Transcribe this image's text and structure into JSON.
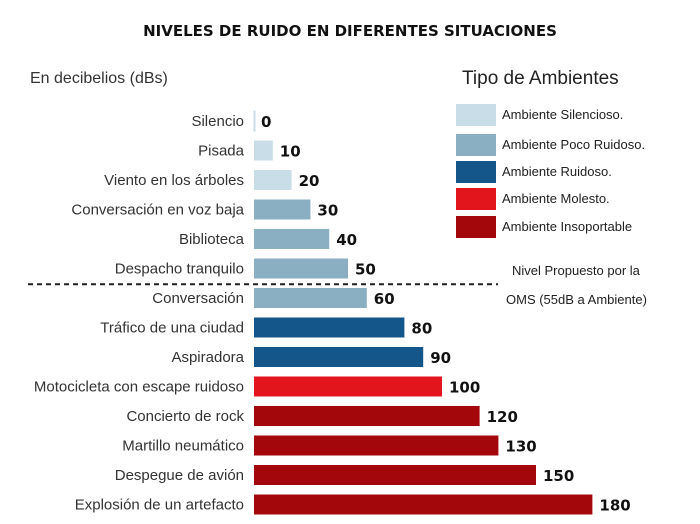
{
  "title": "NIVELES DE RUIDO EN DIFERENTES SITUACIONES",
  "unit_label": "En decibelios (dBs)",
  "legend": {
    "title": "Tipo de Ambientes",
    "items": [
      {
        "label": "Ambiente Silencioso.",
        "color": "#c8dde7"
      },
      {
        "label": "Ambiente Poco Ruidoso.",
        "color": "#8aafc2"
      },
      {
        "label": "Ambiente Ruidoso.",
        "color": "#14568a"
      },
      {
        "label": "Ambiente Molesto.",
        "color": "#e2151c"
      },
      {
        "label": "Ambiente Insoportable",
        "color": "#a3070b"
      }
    ]
  },
  "reference_note": {
    "line1": "Nivel Propuesto por la",
    "line2": "OMS (55dB a Ambiente)"
  },
  "chart_data": {
    "type": "bar",
    "orientation": "horizontal",
    "title": "NIVELES DE RUIDO EN DIFERENTES SITUACIONES",
    "xlabel": "En decibelios (dBs)",
    "xlim": [
      0,
      180
    ],
    "categories": [
      "Silencio",
      "Pisada",
      "Viento en los árboles",
      "Conversación en voz baja",
      "Biblioteca",
      "Despacho tranquilo",
      "Conversación",
      "Tráfico de una ciudad",
      "Aspiradora",
      "Motocicleta con escape ruidoso",
      "Concierto de rock",
      "Martillo neumático",
      "Despegue de avión",
      "Explosión de un artefacto"
    ],
    "values": [
      0,
      10,
      20,
      30,
      40,
      50,
      60,
      80,
      90,
      100,
      120,
      130,
      150,
      180
    ],
    "value_labels": [
      "0",
      "10",
      "20",
      "30",
      "40",
      "50",
      "60",
      "80",
      "90",
      "100",
      "120",
      "130",
      "150",
      "180"
    ],
    "bar_class": [
      0,
      0,
      0,
      1,
      1,
      1,
      1,
      2,
      2,
      3,
      4,
      4,
      4,
      4
    ],
    "reference_line": {
      "value": 55,
      "label": "Nivel Propuesto por la OMS (55dB a Ambiente)",
      "style": "dashed"
    },
    "grid": false,
    "legend_position": "top-right"
  }
}
